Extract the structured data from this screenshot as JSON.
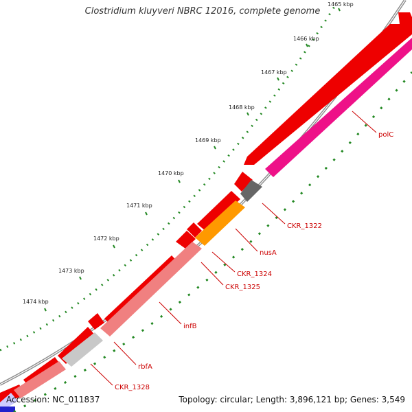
{
  "title": "Clostridium kluyveri NBRC 12016, complete genome",
  "footer": {
    "accession": "Accession: NC_011837",
    "summary": "Topology: circular; Length: 3,896,121 bp; Genes: 3,549"
  },
  "colors": {
    "backbone": "#8c8c8c",
    "forward_gene": "#ee0000",
    "polC": "#ee1188",
    "hypothetical": "#666666",
    "nusA": "#ff9900",
    "infB": "#f08080",
    "rbfA": "#c8c8c8",
    "ruler_tick": "#228822",
    "label": "#cc0000"
  },
  "ruler": [
    {
      "label": "1465 kbp"
    },
    {
      "label": "1466 kbp"
    },
    {
      "label": "1467 kbp"
    },
    {
      "label": "1468 kbp"
    },
    {
      "label": "1469 kbp"
    },
    {
      "label": "1470 kbp"
    },
    {
      "label": "1471 kbp"
    },
    {
      "label": "1472 kbp"
    },
    {
      "label": "1473 kbp"
    },
    {
      "label": "1474 kbp"
    }
  ],
  "genes": [
    {
      "label": "polC"
    },
    {
      "label": "CKR_1322"
    },
    {
      "label": "nusA"
    },
    {
      "label": "CKR_1324"
    },
    {
      "label": "CKR_1325"
    },
    {
      "label": "infB"
    },
    {
      "label": "rbfA"
    },
    {
      "label": "CKR_1328"
    }
  ]
}
